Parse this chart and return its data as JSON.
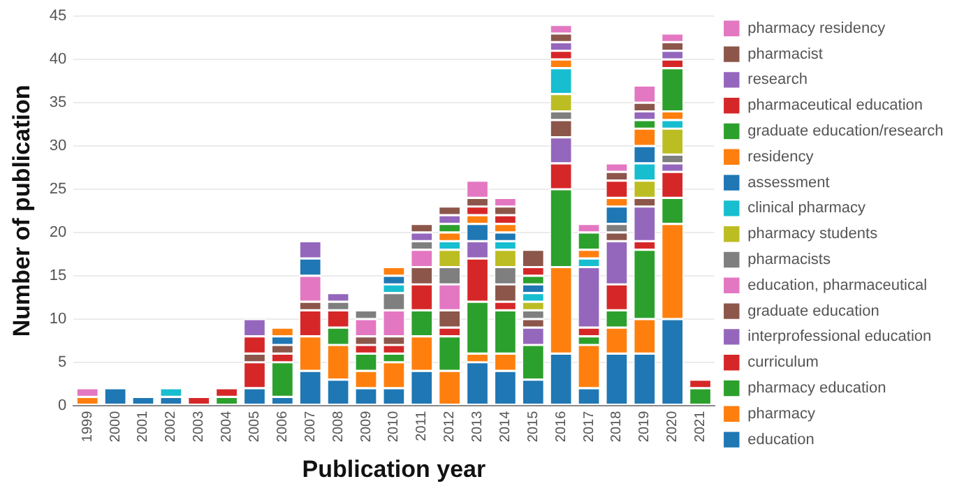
{
  "chart_data": {
    "type": "bar",
    "stacked": true,
    "xlabel": "Publication year",
    "ylabel": "Number of publication",
    "categories": [
      "1999",
      "2000",
      "2001",
      "2002",
      "2003",
      "2004",
      "2005",
      "2006",
      "2007",
      "2008",
      "2009",
      "2010",
      "2011",
      "2012",
      "2013",
      "2014",
      "2015",
      "2016",
      "2017",
      "2018",
      "2019",
      "2020",
      "2021"
    ],
    "ylim": [
      0,
      45
    ],
    "yticks": [
      0,
      5,
      10,
      15,
      20,
      25,
      30,
      35,
      40,
      45
    ],
    "grid": "y",
    "legend": "right",
    "series": [
      {
        "name": "education",
        "color": "#1f77b4",
        "values": [
          null,
          2,
          1,
          1,
          null,
          null,
          2,
          1,
          4,
          3,
          2,
          2,
          4,
          null,
          5,
          4,
          3,
          6,
          2,
          6,
          6,
          10,
          null
        ]
      },
      {
        "name": "pharmacy",
        "color": "#ff7f0e",
        "values": [
          1,
          null,
          null,
          null,
          null,
          null,
          null,
          null,
          4,
          4,
          2,
          3,
          4,
          4,
          1,
          2,
          null,
          10,
          5,
          3,
          4,
          11,
          null
        ]
      },
      {
        "name": "pharmacy education",
        "color": "#2ca02c",
        "values": [
          null,
          null,
          null,
          null,
          null,
          1,
          null,
          4,
          null,
          2,
          2,
          1,
          3,
          4,
          6,
          5,
          4,
          9,
          1,
          2,
          8,
          3,
          2
        ]
      },
      {
        "name": "curriculum",
        "color": "#d62728",
        "values": [
          null,
          null,
          null,
          null,
          1,
          1,
          3,
          1,
          3,
          2,
          1,
          1,
          3,
          1,
          5,
          1,
          null,
          3,
          1,
          3,
          1,
          3,
          1
        ]
      },
      {
        "name": "interprofessional education",
        "color": "#9467bd",
        "values": [
          null,
          null,
          null,
          null,
          null,
          null,
          null,
          null,
          null,
          null,
          null,
          null,
          null,
          null,
          2,
          null,
          2,
          3,
          7,
          5,
          4,
          1,
          null
        ]
      },
      {
        "name": "graduate education",
        "color": "#8c564b",
        "values": [
          null,
          null,
          null,
          null,
          null,
          null,
          1,
          1,
          1,
          null,
          1,
          1,
          2,
          2,
          null,
          2,
          1,
          2,
          null,
          1,
          1,
          null,
          null
        ]
      },
      {
        "name": "education, pharmaceutical",
        "color": "#e377c2",
        "values": [
          1,
          null,
          null,
          null,
          null,
          null,
          null,
          null,
          3,
          null,
          2,
          3,
          2,
          3,
          null,
          null,
          null,
          null,
          null,
          null,
          null,
          null,
          null
        ]
      },
      {
        "name": "pharmacists",
        "color": "#7f7f7f",
        "values": [
          null,
          null,
          null,
          null,
          null,
          null,
          null,
          null,
          null,
          1,
          1,
          2,
          1,
          2,
          null,
          2,
          1,
          1,
          null,
          1,
          null,
          1,
          null
        ]
      },
      {
        "name": "pharmacy students",
        "color": "#bcbd22",
        "values": [
          null,
          null,
          null,
          null,
          null,
          null,
          null,
          null,
          null,
          null,
          null,
          null,
          null,
          2,
          null,
          2,
          1,
          2,
          null,
          null,
          2,
          3,
          null
        ]
      },
      {
        "name": "clinical pharmacy",
        "color": "#17becf",
        "values": [
          null,
          null,
          null,
          1,
          null,
          null,
          null,
          null,
          null,
          null,
          null,
          1,
          null,
          1,
          null,
          1,
          1,
          3,
          1,
          null,
          2,
          1,
          null
        ]
      },
      {
        "name": "assessment",
        "color": "#1f77b4",
        "values": [
          null,
          null,
          null,
          null,
          null,
          null,
          null,
          1,
          2,
          null,
          null,
          1,
          null,
          null,
          2,
          1,
          1,
          null,
          null,
          2,
          2,
          null,
          null
        ]
      },
      {
        "name": "residency",
        "color": "#ff7f0e",
        "values": [
          null,
          null,
          null,
          null,
          null,
          null,
          null,
          1,
          null,
          null,
          null,
          1,
          null,
          1,
          1,
          1,
          null,
          1,
          1,
          1,
          2,
          1,
          null
        ]
      },
      {
        "name": "graduate education/research",
        "color": "#2ca02c",
        "values": [
          null,
          null,
          null,
          null,
          null,
          null,
          null,
          null,
          null,
          null,
          null,
          null,
          null,
          1,
          null,
          null,
          1,
          null,
          2,
          null,
          1,
          5,
          null
        ]
      },
      {
        "name": "pharmaceutical education",
        "color": "#d62728",
        "values": [
          null,
          null,
          null,
          null,
          null,
          null,
          2,
          null,
          null,
          null,
          null,
          null,
          null,
          null,
          1,
          1,
          1,
          1,
          null,
          2,
          null,
          1,
          null
        ]
      },
      {
        "name": "research",
        "color": "#9467bd",
        "values": [
          null,
          null,
          null,
          null,
          null,
          null,
          2,
          null,
          2,
          1,
          null,
          null,
          1,
          1,
          null,
          null,
          null,
          1,
          null,
          null,
          1,
          1,
          null
        ]
      },
      {
        "name": "pharmacist",
        "color": "#8c564b",
        "values": [
          null,
          null,
          null,
          null,
          null,
          null,
          null,
          null,
          null,
          null,
          null,
          null,
          1,
          1,
          1,
          1,
          2,
          1,
          null,
          1,
          1,
          1,
          null
        ]
      },
      {
        "name": "pharmacy residency",
        "color": "#e377c2",
        "values": [
          null,
          null,
          null,
          null,
          null,
          null,
          null,
          null,
          null,
          null,
          null,
          null,
          null,
          null,
          2,
          1,
          null,
          1,
          1,
          1,
          2,
          1,
          null
        ]
      }
    ]
  }
}
